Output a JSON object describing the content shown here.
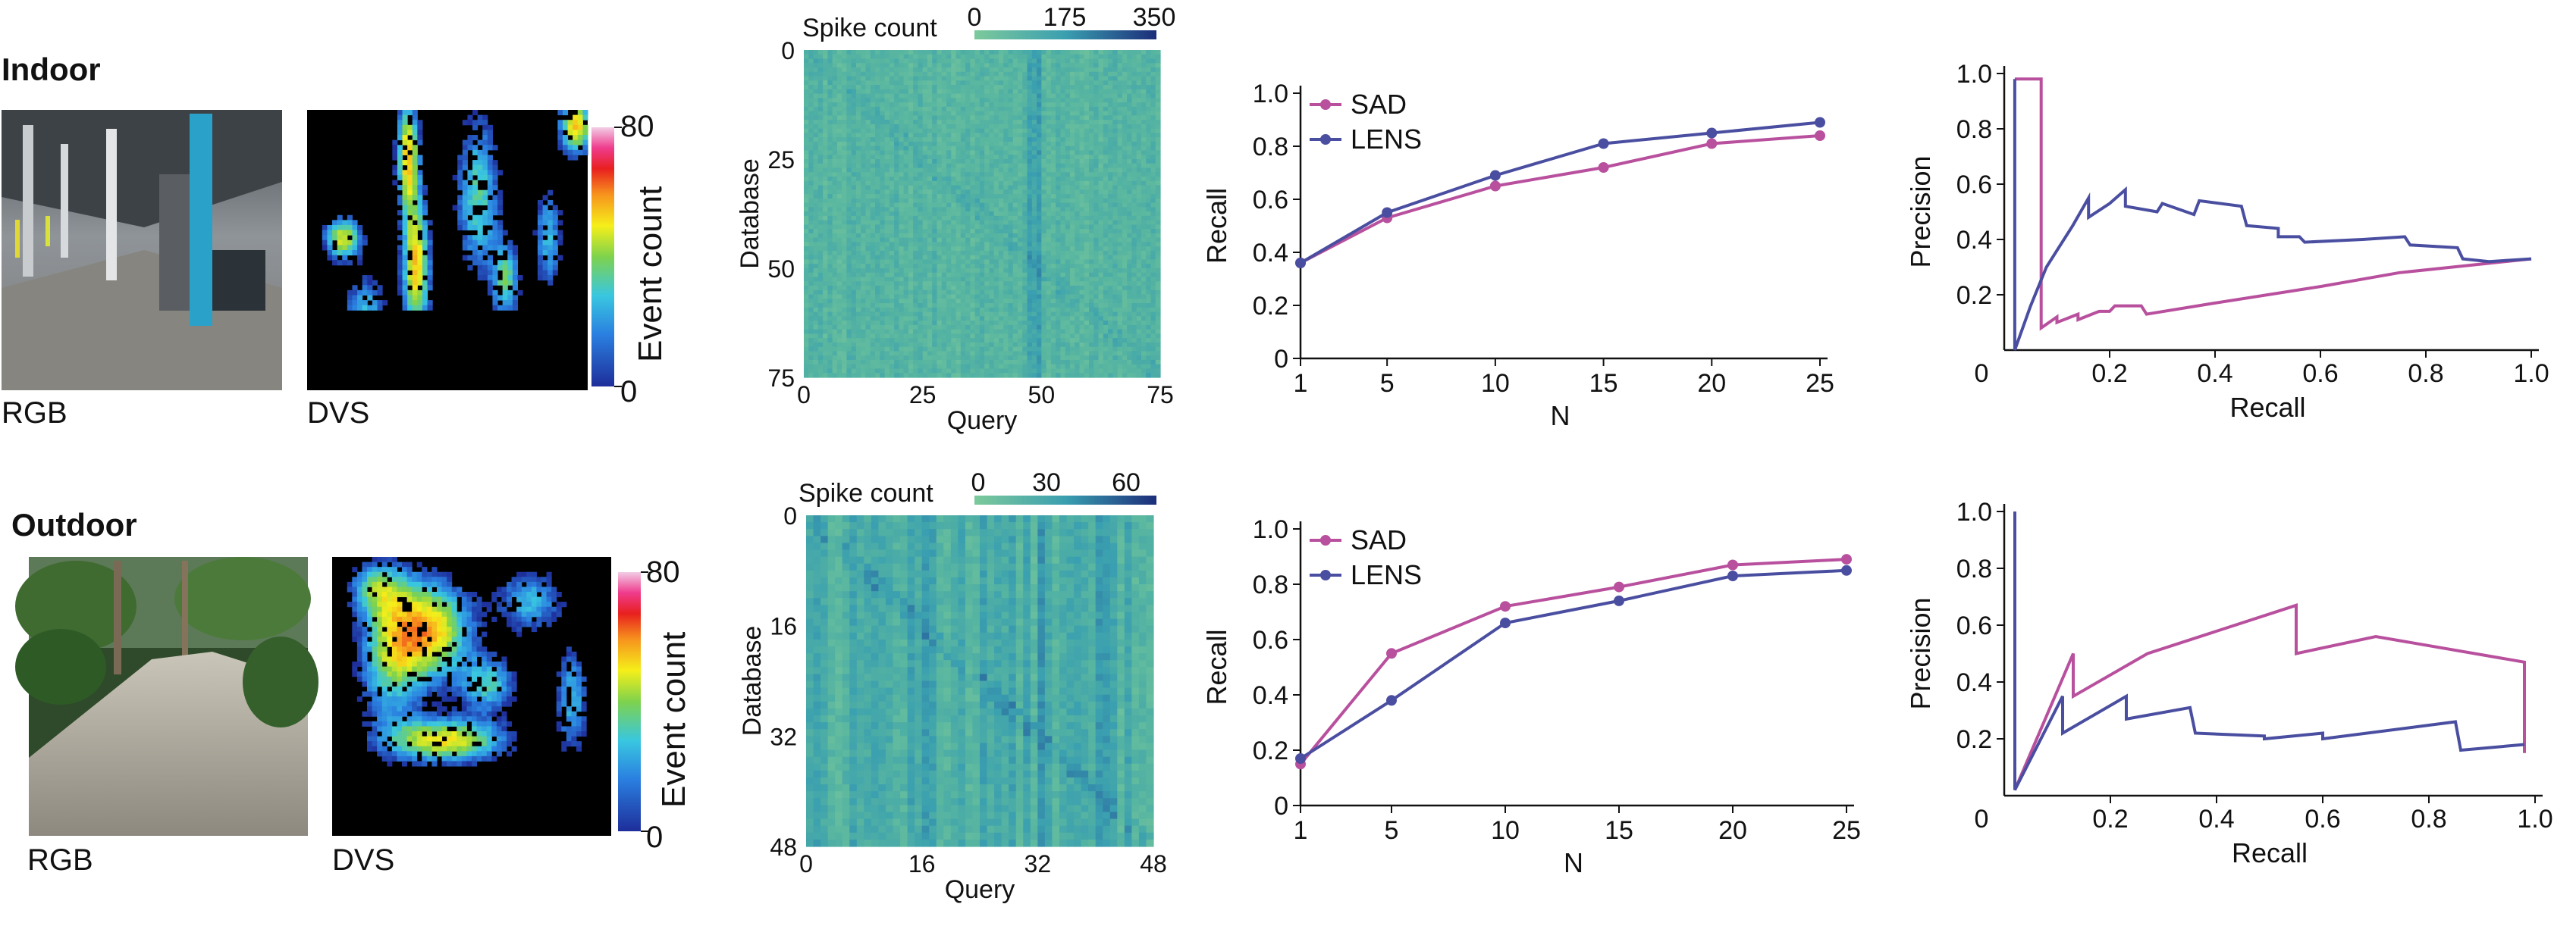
{
  "rows": [
    {
      "id": "indoor",
      "title": "Indoor",
      "rgb_label": "RGB",
      "dvs_label": "DVS",
      "event_cbar": {
        "label": "Event count",
        "ticks": [
          "80",
          "0"
        ]
      },
      "spike_cbar": {
        "label": "Spike count",
        "ticks": [
          "0",
          "175",
          "350"
        ]
      }
    },
    {
      "id": "outdoor",
      "title": "Outdoor",
      "rgb_label": "RGB",
      "dvs_label": "DVS",
      "event_cbar": {
        "label": "Event count",
        "ticks": [
          "80",
          "0"
        ]
      },
      "spike_cbar": {
        "label": "Spike count",
        "ticks": [
          "0",
          "30",
          "60"
        ]
      }
    }
  ],
  "colors": {
    "SAD": "#b8509e",
    "LENS": "#4a4ea0"
  },
  "chart_data": [
    {
      "id": "indoor-heatmap",
      "type": "heatmap",
      "xlabel": "Query",
      "ylabel": "Database",
      "xticks": [
        "0",
        "25",
        "50",
        "75"
      ],
      "yticks": [
        "0",
        "25",
        "50",
        "75"
      ],
      "size": 75,
      "vmin": 0,
      "vmax": 350
    },
    {
      "id": "indoor-recall",
      "type": "line",
      "xlabel": "N",
      "ylabel": "Recall",
      "xlim": [
        1,
        25
      ],
      "ylim": [
        0,
        1
      ],
      "xticks": [
        "1",
        "5",
        "10",
        "15",
        "20",
        "25"
      ],
      "yticks": [
        "0",
        "0.2",
        "0.4",
        "0.6",
        "0.8",
        "1.0"
      ],
      "legend_position": "top-left",
      "x": [
        1,
        5,
        10,
        15,
        20,
        25
      ],
      "series": [
        {
          "name": "SAD",
          "color": "#b8509e",
          "values": [
            0.36,
            0.53,
            0.65,
            0.72,
            0.81,
            0.84
          ]
        },
        {
          "name": "LENS",
          "color": "#4a4ea0",
          "values": [
            0.36,
            0.55,
            0.69,
            0.81,
            0.85,
            0.89
          ]
        }
      ]
    },
    {
      "id": "indoor-pr",
      "type": "line",
      "xlabel": "Recall",
      "ylabel": "Precision",
      "xlim": [
        0,
        1
      ],
      "ylim": [
        0,
        1
      ],
      "xticks": [
        "0",
        "0.2",
        "0.4",
        "0.6",
        "0.8",
        "1.0"
      ],
      "yticks": [
        "0.2",
        "0.4",
        "0.6",
        "0.8",
        "1.0"
      ],
      "series": [
        {
          "name": "SAD",
          "color": "#b8509e",
          "points": [
            [
              0.02,
              0.98
            ],
            [
              0.07,
              0.98
            ],
            [
              0.07,
              0.08
            ],
            [
              0.1,
              0.12
            ],
            [
              0.1,
              0.1
            ],
            [
              0.14,
              0.13
            ],
            [
              0.14,
              0.11
            ],
            [
              0.18,
              0.14
            ],
            [
              0.2,
              0.14
            ],
            [
              0.21,
              0.16
            ],
            [
              0.26,
              0.16
            ],
            [
              0.27,
              0.13
            ],
            [
              0.4,
              0.17
            ],
            [
              0.6,
              0.23
            ],
            [
              0.75,
              0.28
            ],
            [
              0.9,
              0.31
            ],
            [
              1.0,
              0.33
            ]
          ]
        },
        {
          "name": "LENS",
          "color": "#4a4ea0",
          "points": [
            [
              0.02,
              0.98
            ],
            [
              0.02,
              0.0
            ],
            [
              0.05,
              0.16
            ],
            [
              0.08,
              0.3
            ],
            [
              0.1,
              0.36
            ],
            [
              0.13,
              0.45
            ],
            [
              0.16,
              0.55
            ],
            [
              0.16,
              0.48
            ],
            [
              0.2,
              0.53
            ],
            [
              0.23,
              0.58
            ],
            [
              0.23,
              0.52
            ],
            [
              0.29,
              0.5
            ],
            [
              0.3,
              0.53
            ],
            [
              0.36,
              0.49
            ],
            [
              0.37,
              0.54
            ],
            [
              0.45,
              0.52
            ],
            [
              0.46,
              0.45
            ],
            [
              0.52,
              0.44
            ],
            [
              0.52,
              0.41
            ],
            [
              0.56,
              0.41
            ],
            [
              0.57,
              0.39
            ],
            [
              0.68,
              0.4
            ],
            [
              0.76,
              0.41
            ],
            [
              0.77,
              0.38
            ],
            [
              0.86,
              0.37
            ],
            [
              0.87,
              0.33
            ],
            [
              0.92,
              0.32
            ],
            [
              1.0,
              0.33
            ]
          ]
        }
      ]
    },
    {
      "id": "outdoor-heatmap",
      "type": "heatmap",
      "xlabel": "Query",
      "ylabel": "Database",
      "xticks": [
        "0",
        "16",
        "32",
        "48"
      ],
      "yticks": [
        "0",
        "16",
        "32",
        "48"
      ],
      "size": 48,
      "vmin": 0,
      "vmax": 60
    },
    {
      "id": "outdoor-recall",
      "type": "line",
      "xlabel": "N",
      "ylabel": "Recall",
      "xlim": [
        1,
        25
      ],
      "ylim": [
        0,
        1
      ],
      "xticks": [
        "1",
        "5",
        "10",
        "15",
        "20",
        "25"
      ],
      "yticks": [
        "0",
        "0.2",
        "0.4",
        "0.6",
        "0.8",
        "1.0"
      ],
      "legend_position": "top-left",
      "x": [
        1,
        5,
        10,
        15,
        20,
        25
      ],
      "series": [
        {
          "name": "SAD",
          "color": "#b8509e",
          "values": [
            0.15,
            0.55,
            0.72,
            0.79,
            0.87,
            0.89
          ]
        },
        {
          "name": "LENS",
          "color": "#4a4ea0",
          "values": [
            0.17,
            0.38,
            0.66,
            0.74,
            0.83,
            0.85
          ]
        }
      ]
    },
    {
      "id": "outdoor-pr",
      "type": "line",
      "xlabel": "Recall",
      "ylabel": "Precision",
      "xlim": [
        0,
        1
      ],
      "ylim": [
        0,
        1
      ],
      "xticks": [
        "0",
        "0.2",
        "0.4",
        "0.6",
        "0.8",
        "1.0"
      ],
      "yticks": [
        "0.2",
        "0.4",
        "0.6",
        "0.8",
        "1.0"
      ],
      "series": [
        {
          "name": "SAD",
          "color": "#b8509e",
          "points": [
            [
              0.02,
              0.02
            ],
            [
              0.13,
              0.5
            ],
            [
              0.13,
              0.35
            ],
            [
              0.27,
              0.5
            ],
            [
              0.55,
              0.67
            ],
            [
              0.55,
              0.5
            ],
            [
              0.7,
              0.56
            ],
            [
              0.98,
              0.47
            ],
            [
              0.98,
              0.15
            ]
          ]
        },
        {
          "name": "LENS",
          "color": "#4a4ea0",
          "points": [
            [
              0.02,
              1.0
            ],
            [
              0.02,
              0.02
            ],
            [
              0.11,
              0.35
            ],
            [
              0.11,
              0.22
            ],
            [
              0.23,
              0.35
            ],
            [
              0.23,
              0.27
            ],
            [
              0.35,
              0.31
            ],
            [
              0.36,
              0.22
            ],
            [
              0.49,
              0.21
            ],
            [
              0.49,
              0.2
            ],
            [
              0.6,
              0.22
            ],
            [
              0.6,
              0.2
            ],
            [
              0.85,
              0.26
            ],
            [
              0.86,
              0.16
            ],
            [
              0.98,
              0.18
            ]
          ]
        }
      ]
    }
  ]
}
